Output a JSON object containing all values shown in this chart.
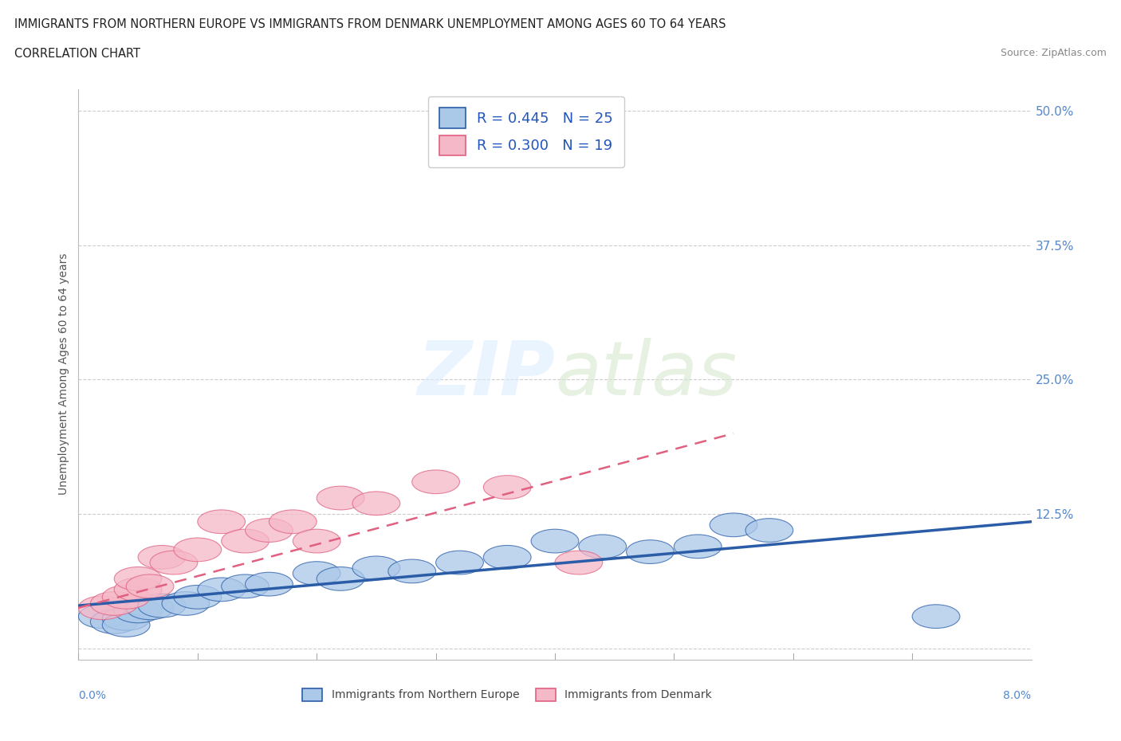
{
  "title_line1": "IMMIGRANTS FROM NORTHERN EUROPE VS IMMIGRANTS FROM DENMARK UNEMPLOYMENT AMONG AGES 60 TO 64 YEARS",
  "title_line2": "CORRELATION CHART",
  "source_text": "Source: ZipAtlas.com",
  "ylabel": "Unemployment Among Ages 60 to 64 years",
  "ytick_vals": [
    0.0,
    0.125,
    0.25,
    0.375,
    0.5
  ],
  "ytick_labels": [
    "",
    "12.5%",
    "25.0%",
    "37.5%",
    "50.0%"
  ],
  "xmin": 0.0,
  "xmax": 0.08,
  "ymin": -0.01,
  "ymax": 0.52,
  "legend1_label": "R = 0.445   N = 25",
  "legend2_label": "R = 0.300   N = 19",
  "legend_xlabel": "Immigrants from Northern Europe",
  "legend_ylabel": "Immigrants from Denmark",
  "blue_scatter_x": [
    0.002,
    0.003,
    0.004,
    0.004,
    0.005,
    0.006,
    0.007,
    0.009,
    0.01,
    0.012,
    0.014,
    0.016,
    0.02,
    0.022,
    0.025,
    0.028,
    0.032,
    0.036,
    0.04,
    0.044,
    0.048,
    0.052,
    0.055,
    0.058,
    0.072
  ],
  "blue_scatter_y": [
    0.03,
    0.025,
    0.028,
    0.022,
    0.035,
    0.038,
    0.04,
    0.042,
    0.048,
    0.055,
    0.058,
    0.06,
    0.07,
    0.065,
    0.075,
    0.072,
    0.08,
    0.085,
    0.1,
    0.095,
    0.09,
    0.095,
    0.115,
    0.11,
    0.03
  ],
  "pink_scatter_x": [
    0.002,
    0.003,
    0.004,
    0.005,
    0.005,
    0.006,
    0.007,
    0.008,
    0.01,
    0.012,
    0.014,
    0.016,
    0.018,
    0.02,
    0.022,
    0.025,
    0.03,
    0.036,
    0.042
  ],
  "pink_scatter_y": [
    0.038,
    0.042,
    0.048,
    0.055,
    0.065,
    0.058,
    0.085,
    0.08,
    0.092,
    0.118,
    0.1,
    0.11,
    0.118,
    0.1,
    0.14,
    0.135,
    0.155,
    0.15,
    0.08
  ],
  "blue_trend_x": [
    0.0,
    0.08
  ],
  "blue_trend_y": [
    0.04,
    0.118
  ],
  "pink_trend_x": [
    0.0,
    0.055
  ],
  "pink_trend_y": [
    0.038,
    0.2
  ],
  "blue_color": "#aac8e8",
  "pink_color": "#f5b8c8",
  "blue_line_color": "#2a5ca8",
  "pink_line_color": "#e06080",
  "watermark_color": "#d8e8f0",
  "background_color": "#ffffff",
  "grid_color": "#cccccc"
}
